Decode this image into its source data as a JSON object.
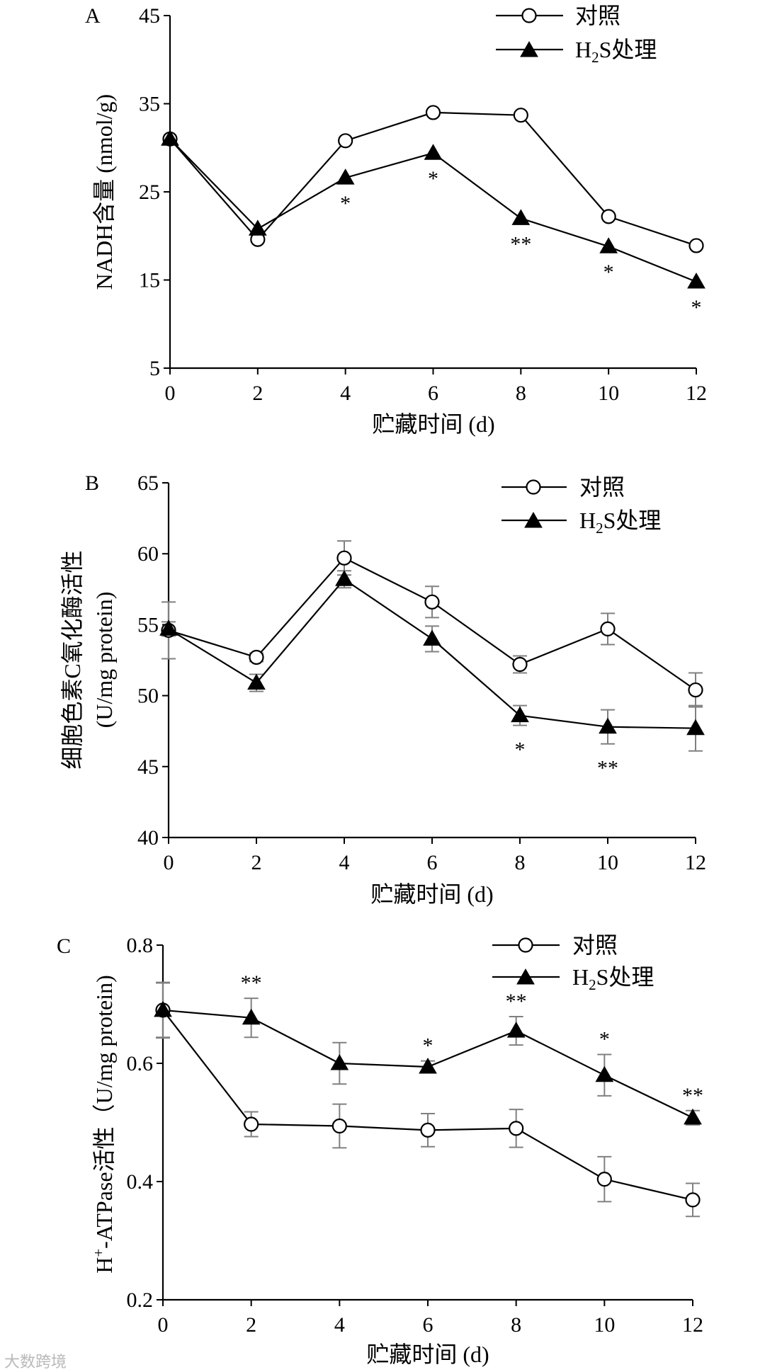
{
  "chart_data": [
    {
      "type": "line",
      "panel": "A",
      "title": "",
      "xlabel": "贮藏时间 (d)",
      "ylabel": "NADH含量 (nmol/g)",
      "x": [
        0,
        2,
        4,
        6,
        8,
        10,
        12
      ],
      "xticks": [
        "0",
        "2",
        "4",
        "6",
        "8",
        "10",
        "12"
      ],
      "ylim": [
        5,
        45
      ],
      "yticks": [
        5,
        15,
        25,
        35,
        45
      ],
      "error_bars": false,
      "legend": {
        "control": "对照",
        "treated_prefix": "H",
        "treated_sub": "2",
        "treated_suffix": "S处理",
        "placement": "top-right"
      },
      "series": [
        {
          "name": "对照",
          "marker": "open-circle",
          "values": [
            31.0,
            19.6,
            30.8,
            34.0,
            33.7,
            22.2,
            18.9
          ]
        },
        {
          "name": "H2S处理",
          "marker": "filled-triangle",
          "values": [
            31.0,
            20.8,
            26.6,
            29.4,
            22.0,
            18.8,
            14.8
          ]
        }
      ],
      "significance": [
        "",
        "",
        "*",
        "*",
        "**",
        "*",
        "*"
      ]
    },
    {
      "type": "line",
      "panel": "B",
      "title": "",
      "xlabel": "贮藏时间 (d)",
      "ylabel": "细胞色素C氧化酶活性",
      "ylabel2": "(U/mg protein)",
      "x": [
        0,
        2,
        4,
        6,
        8,
        10,
        12
      ],
      "xticks": [
        "0",
        "2",
        "4",
        "6",
        "8",
        "10",
        "12"
      ],
      "ylim": [
        40,
        65
      ],
      "yticks": [
        40,
        45,
        50,
        55,
        60,
        65
      ],
      "error_bars": true,
      "legend": {
        "control": "对照",
        "treated_prefix": "H",
        "treated_sub": "2",
        "treated_suffix": "S处理",
        "placement": "top-right"
      },
      "series": [
        {
          "name": "对照",
          "marker": "open-circle",
          "values": [
            54.6,
            52.7,
            59.7,
            56.6,
            52.2,
            54.7,
            50.4
          ],
          "errors": [
            2.0,
            0.3,
            1.2,
            1.1,
            0.6,
            1.1,
            1.2
          ]
        },
        {
          "name": "H2S处理",
          "marker": "filled-triangle",
          "values": [
            54.7,
            50.9,
            58.2,
            54.0,
            48.6,
            47.8,
            47.7
          ],
          "errors": [
            0.5,
            0.6,
            0.6,
            0.9,
            0.7,
            1.2,
            1.6
          ]
        }
      ],
      "significance": [
        "",
        "",
        "",
        "",
        "*",
        "**",
        ""
      ]
    },
    {
      "type": "line",
      "panel": "C",
      "title": "",
      "xlabel": "贮藏时间 (d)",
      "ylabel_prefix": "H",
      "ylabel_sup": "+",
      "ylabel_suffix": "-ATPase活性（U/mg protein)",
      "x": [
        0,
        2,
        4,
        6,
        8,
        10,
        12
      ],
      "xticks": [
        "0",
        "2",
        "4",
        "6",
        "8",
        "10",
        "12"
      ],
      "ylim": [
        0.2,
        0.8
      ],
      "yticks": [
        0.2,
        0.4,
        0.6,
        0.8
      ],
      "ytick_labels": [
        "0.2",
        "0.4",
        "0.6",
        "0.8"
      ],
      "error_bars": true,
      "legend": {
        "control": "对照",
        "treated_prefix": "H",
        "treated_sub": "2",
        "treated_suffix": "S处理",
        "placement": "top-right"
      },
      "series": [
        {
          "name": "对照",
          "marker": "open-circle",
          "values": [
            0.69,
            0.497,
            0.494,
            0.487,
            0.49,
            0.404,
            0.369
          ],
          "errors": [
            0.047,
            0.021,
            0.037,
            0.028,
            0.032,
            0.038,
            0.028
          ]
        },
        {
          "name": "H2S处理",
          "marker": "filled-triangle",
          "values": [
            0.69,
            0.677,
            0.6,
            0.594,
            0.655,
            0.58,
            0.508
          ],
          "errors": [
            0.046,
            0.033,
            0.035,
            0.01,
            0.024,
            0.035,
            0.012
          ]
        }
      ],
      "significance": [
        "",
        "**",
        "",
        "*",
        "**",
        "*",
        "**"
      ]
    }
  ],
  "watermark": "大数跨境"
}
